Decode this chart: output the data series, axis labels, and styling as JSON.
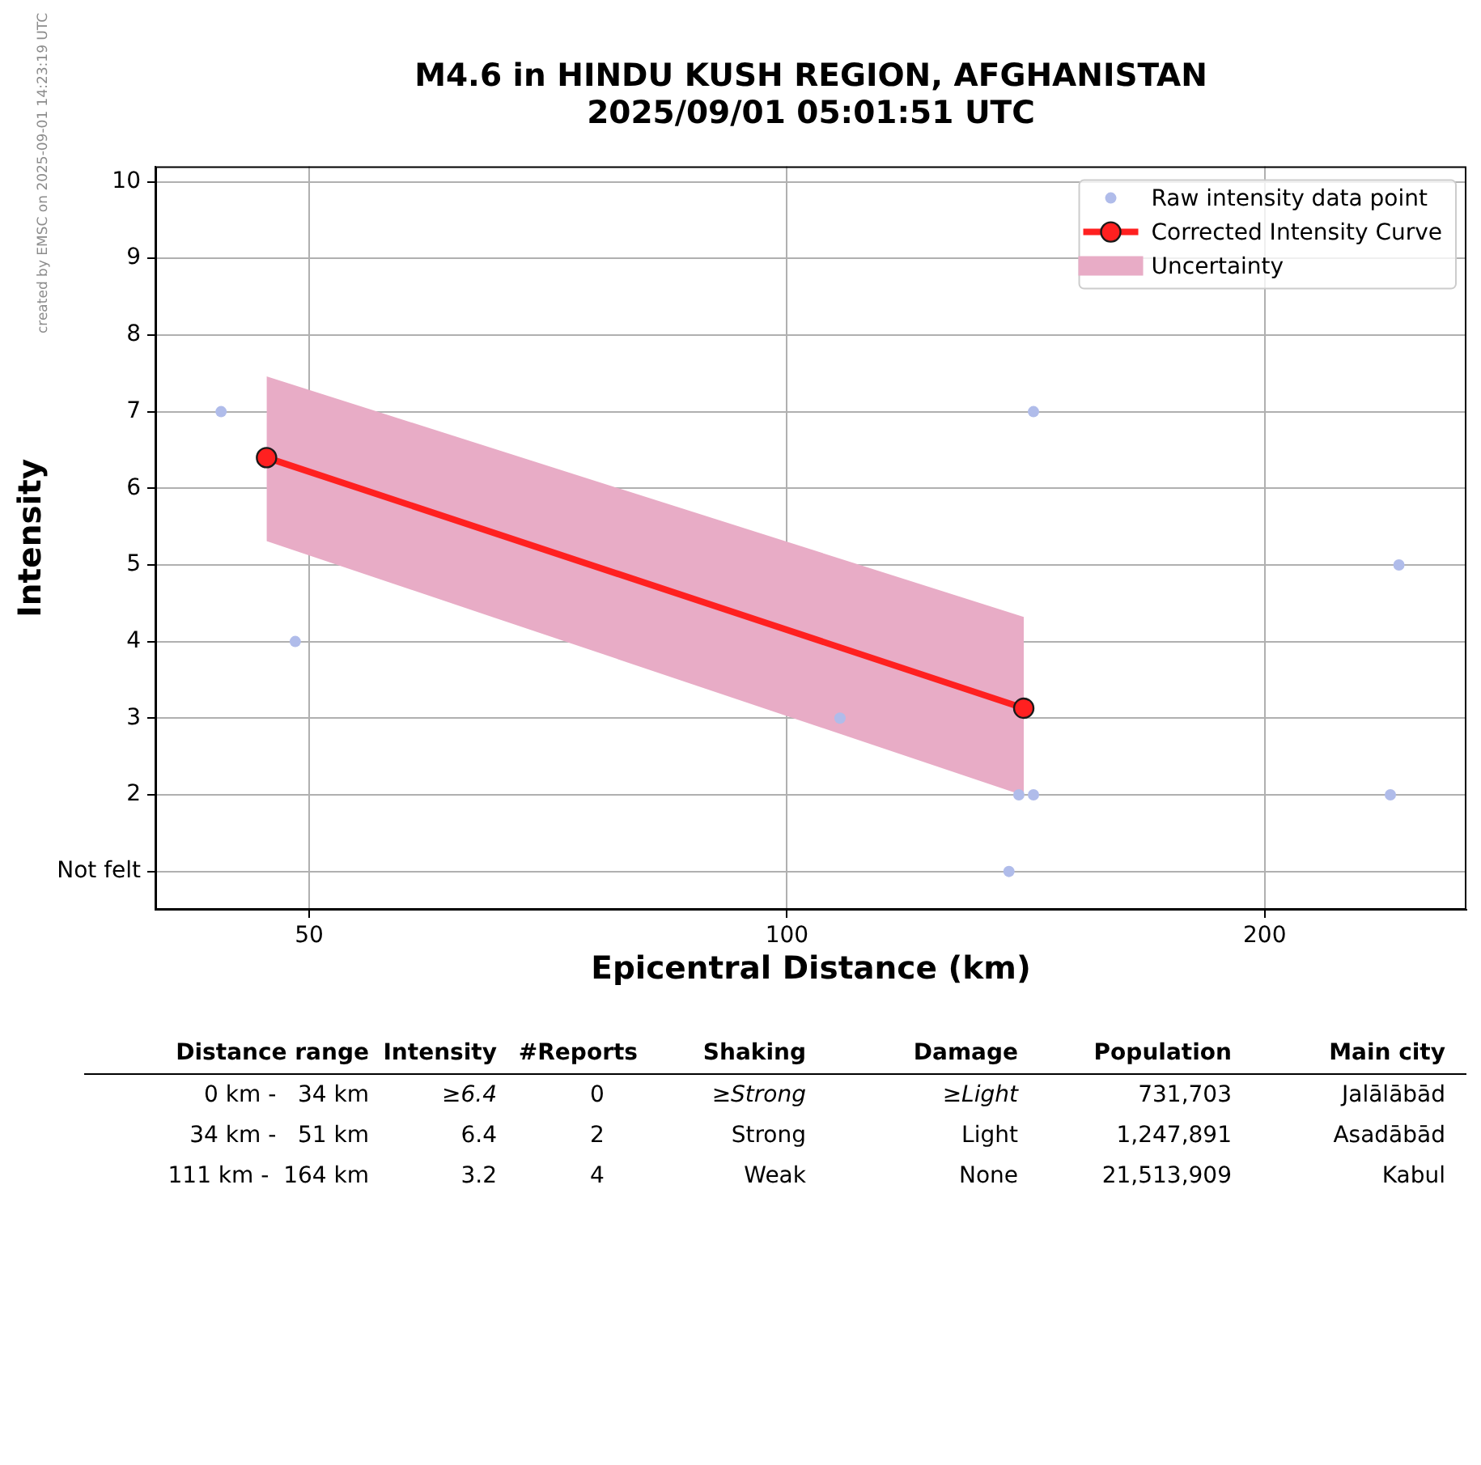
{
  "chart_data": [
    {
      "type": "scatter",
      "title": "M4.6 in HINDU KUSH REGION, AFGHANISTAN",
      "subtitle": "2025/09/01 05:01:51 UTC",
      "xlabel": "Epicentral Distance (km)",
      "ylabel": "Intensity",
      "annotations": [
        "created by EMSC on 2025-09-01 14:23:19 UTC"
      ],
      "log": "x",
      "xlim": [
        40,
        268
      ],
      "xticks": [
        50,
        100,
        200
      ],
      "ylim": [
        0.5,
        10.2
      ],
      "yticks": [
        {
          "value": 1,
          "label": "Not felt"
        },
        2,
        3,
        4,
        5,
        6,
        7,
        8,
        9,
        10
      ],
      "grid": true,
      "legend": "top right",
      "line_style": "solid",
      "series": [
        {
          "name": "Raw intensity data point",
          "type": "scatter",
          "color": "#b0bcea",
          "marker": "circle",
          "x": [
            44,
            49,
            108,
            138,
            140,
            143,
            143,
            240,
            243
          ],
          "values": [
            7,
            4,
            3,
            1,
            2,
            2,
            7,
            2,
            5
          ]
        },
        {
          "name": "Corrected Intensity Curve",
          "type": "line",
          "color": "#ff2020",
          "marker": "circle",
          "x": [
            47,
            141
          ],
          "values": [
            6.4,
            3.13
          ]
        },
        {
          "name": "Uncertainty",
          "type": "area",
          "color": "#e8acc6",
          "x": [
            47,
            141
          ],
          "values": [
            null,
            null
          ],
          "lower": [
            5.31,
            1.99
          ],
          "upper": [
            7.46,
            4.32
          ]
        }
      ]
    },
    {
      "type": "other",
      "categories": [
        "Distance range",
        "Intensity",
        "#Reports",
        "Shaking",
        "Damage",
        "Population",
        "Main city"
      ],
      "cell_labels": [
        [
          "0 km -   34 km",
          "≥6.4",
          "0",
          "≥Strong",
          "≥Light",
          "731,703",
          "Jalālābād"
        ],
        [
          "34 km -   51 km",
          "6.4",
          "2",
          "Strong",
          "Light",
          "1,247,891",
          "Asadābād"
        ],
        [
          "111 km -  164 km",
          "3.2",
          "4",
          "Weak",
          "None",
          "21,513,909",
          "Kabul"
        ]
      ]
    }
  ]
}
